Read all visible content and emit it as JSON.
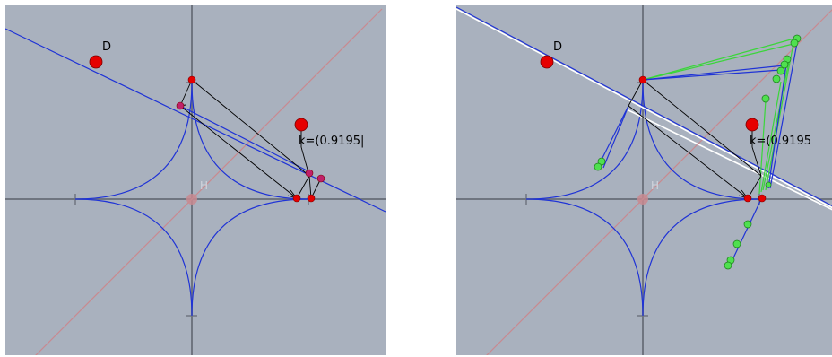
{
  "panels": [
    {
      "id": "left",
      "point_d_label": "D",
      "origin_label": "H",
      "readout": "k=(0.9195|"
    },
    {
      "id": "right",
      "point_d_label": "D",
      "origin_label": "H",
      "readout": "k=(0.9195"
    }
  ],
  "colors": {
    "background": "#a9b1be",
    "axis": "#6f7580",
    "curve": "#1f33d6",
    "point": "#e60000",
    "locus": "#3ad63a",
    "diagonal": "#c98a90",
    "white_line": "#ffffff"
  }
}
